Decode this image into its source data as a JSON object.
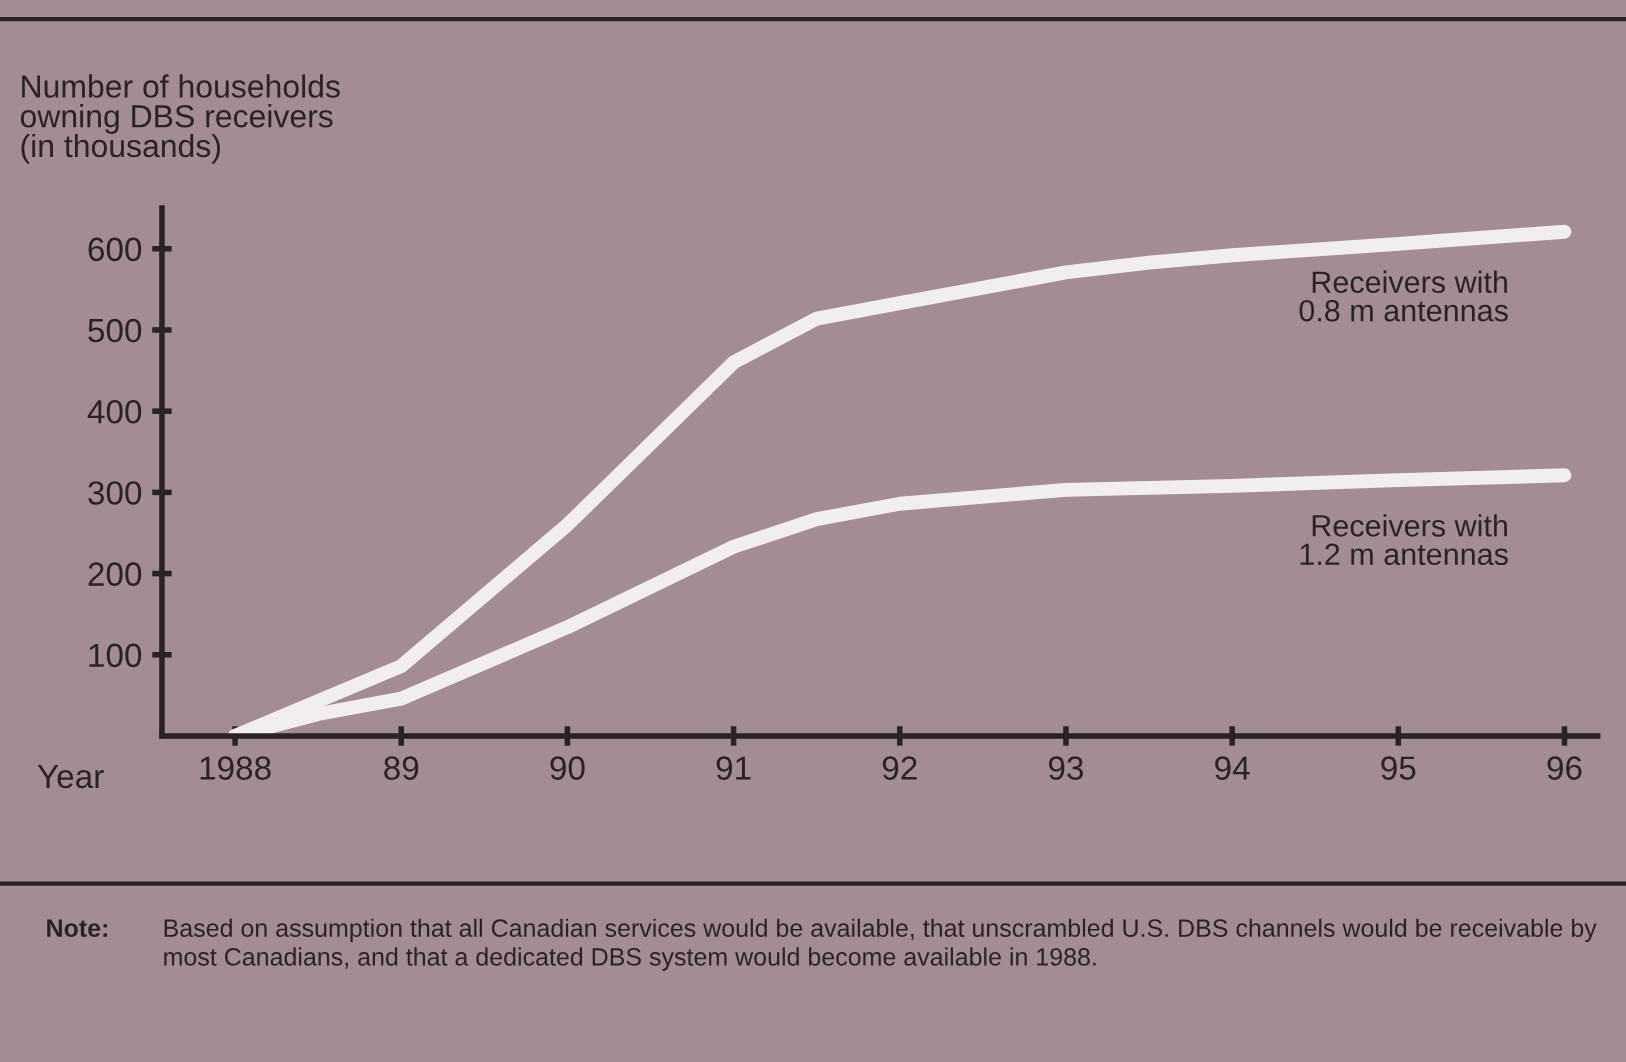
{
  "chart_data": {
    "type": "line",
    "ylabel": "Number of households\nowning DBS receivers\n(in thousands)",
    "xlabel": "Year",
    "annotations": [
      "Note:",
      "Based on assumption that all Canadian services would be available, that unscrambled U.S. DBS channels would be receivable by most Canadians, and that a dedicated DBS system would become available in 1988."
    ],
    "xlim": [
      1987.56,
      1996.2
    ],
    "xticks": [
      {
        "value": 1988,
        "label": "1988"
      },
      {
        "value": 1989,
        "label": "89"
      },
      {
        "value": 1990,
        "label": "90"
      },
      {
        "value": 1991,
        "label": "91"
      },
      {
        "value": 1992,
        "label": "92"
      },
      {
        "value": 1993,
        "label": "93"
      },
      {
        "value": 1994,
        "label": "94"
      },
      {
        "value": 1995,
        "label": "95"
      },
      {
        "value": 1996,
        "label": "96"
      }
    ],
    "ylim": [
      0,
      650
    ],
    "yticks": [
      100,
      200,
      300,
      400,
      500,
      600
    ],
    "grid": false,
    "legend": false,
    "marker": "none",
    "line_style": "solid",
    "series": [
      {
        "name": "Receivers with\n0.8 m antennas",
        "color": "#f2eef0",
        "x": [
          1988,
          1989,
          1990,
          1991,
          1991.5,
          1992,
          1993,
          1993.5,
          1994,
          1995,
          1996
        ],
        "values": [
          0,
          86,
          260,
          460,
          514,
          533,
          571,
          583,
          592,
          606,
          621
        ]
      },
      {
        "name": "Receivers with\n1.2 m antennas",
        "color": "#f2eef0",
        "x": [
          1988,
          1988.5,
          1989,
          1990,
          1991,
          1991.5,
          1992,
          1993,
          1994,
          1995,
          1996
        ],
        "values": [
          0,
          27,
          46,
          134,
          233,
          267,
          286,
          303,
          308,
          315,
          321
        ]
      }
    ]
  }
}
